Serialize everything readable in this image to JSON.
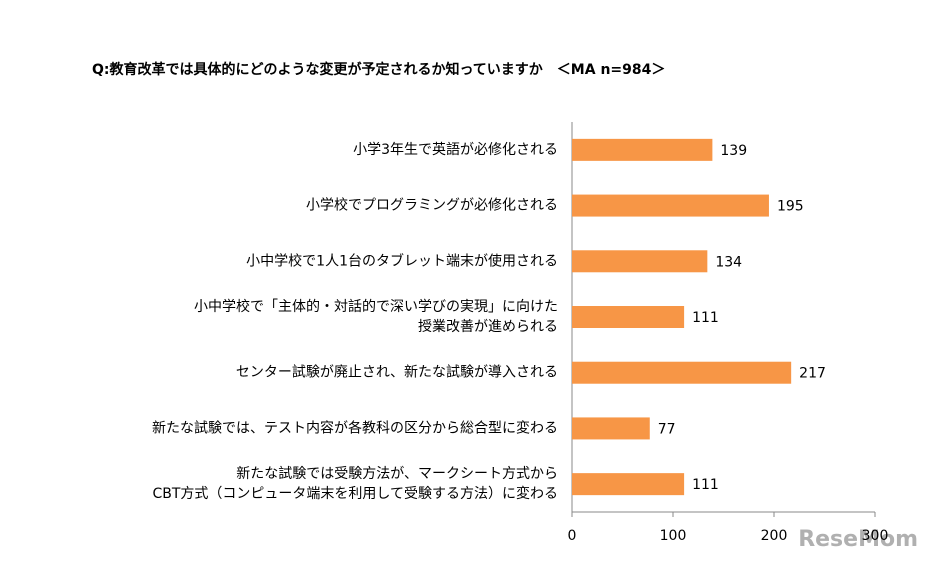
{
  "chart_data": {
    "type": "bar",
    "orientation": "horizontal",
    "title": "Q:教育改革では具体的にどのような変更が予定されるか知っていますか　＜MA n=984＞",
    "categories": [
      [
        "小学3年生で英語が必修化される"
      ],
      [
        "小学校でプログラミングが必修化される"
      ],
      [
        "小中学校で1人1台のタブレット端末が使用される"
      ],
      [
        "小中学校で「主体的・対話的で深い学びの実現」に向けた",
        "授業改善が進められる"
      ],
      [
        "センター試験が廃止され、新たな試験が導入される"
      ],
      [
        "新たな試験では、テスト内容が各教科の区分から総合型に変わる"
      ],
      [
        "新たな試験では受験方法が、マークシート方式から",
        "CBT方式（コンピュータ端末を利用して受験する方法）に変わる"
      ]
    ],
    "values": [
      139,
      195,
      134,
      111,
      217,
      77,
      111
    ],
    "color": "#f79646",
    "xlim": [
      0,
      300
    ],
    "xticks": [
      0,
      100,
      200,
      300
    ],
    "watermark": "ReseMom"
  }
}
